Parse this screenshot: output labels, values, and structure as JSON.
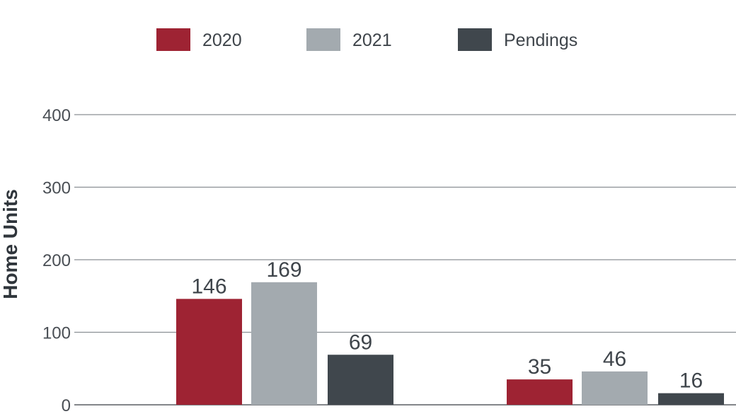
{
  "chart_data": {
    "type": "bar",
    "categories": [
      "",
      ""
    ],
    "series": [
      {
        "name": "2020",
        "values": [
          146,
          35
        ],
        "color": "#9e2333"
      },
      {
        "name": "2021",
        "values": [
          169,
          46
        ],
        "color": "#a3aaaf"
      },
      {
        "name": "Pendings",
        "values": [
          69,
          16
        ],
        "color": "#40474d"
      }
    ],
    "xlabel": "",
    "ylabel": "Home Units",
    "ylim": [
      0,
      400
    ],
    "yticks": [
      0,
      100,
      200,
      300,
      400
    ],
    "grid": true,
    "legend_position": "top-center"
  }
}
